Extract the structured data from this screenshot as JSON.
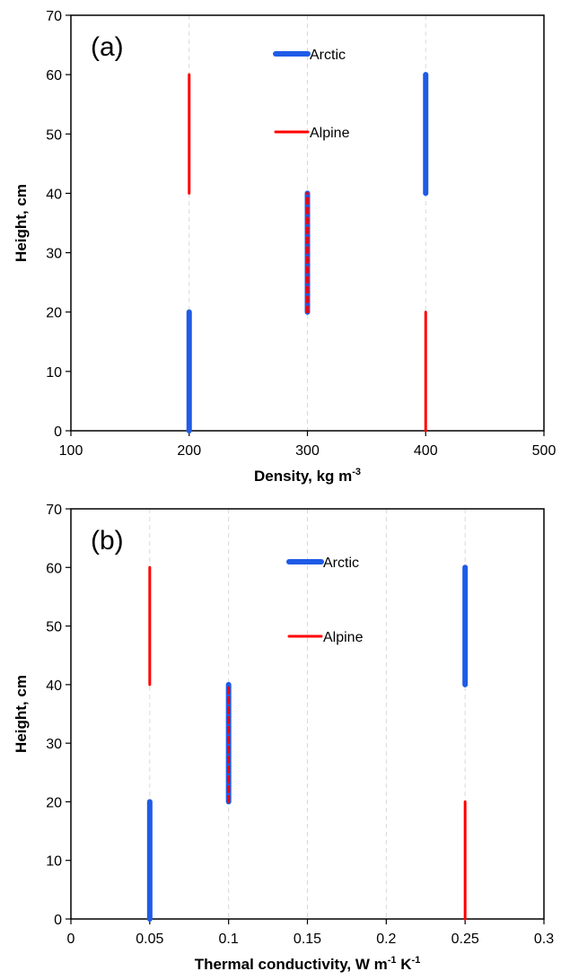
{
  "chart_data": [
    {
      "type": "line",
      "panel_label": "(a)",
      "xlabel": "Density, kg m",
      "xlabel_sup": "-3",
      "ylabel": "Height, cm",
      "xlim": [
        100,
        500
      ],
      "ylim": [
        0,
        70
      ],
      "xticks": [
        100,
        200,
        300,
        400,
        500
      ],
      "xtick_labels": [
        "100",
        "200",
        "300",
        "400",
        "500"
      ],
      "yticks": [
        0,
        10,
        20,
        30,
        40,
        50,
        60,
        70
      ],
      "ytick_labels": [
        "0",
        "10",
        "20",
        "30",
        "40",
        "50",
        "60",
        "70"
      ],
      "grid": "vertical dashed",
      "legend_position": "top-center",
      "series": [
        {
          "name": "Arctic",
          "color": "#1f5be6",
          "style": "thick solid",
          "segments": [
            [
              [
                200,
                0
              ],
              [
                200,
                20
              ]
            ],
            [
              [
                300,
                20
              ],
              [
                300,
                40
              ]
            ],
            [
              [
                400,
                40
              ],
              [
                400,
                60
              ]
            ]
          ]
        },
        {
          "name": "Alpine",
          "color": "#ff0000",
          "style": "thin solid",
          "segments": [
            [
              [
                400,
                0
              ],
              [
                400,
                20
              ]
            ],
            [
              [
                300,
                20
              ],
              [
                300,
                40
              ]
            ],
            [
              [
                200,
                40
              ],
              [
                200,
                60
              ]
            ]
          ]
        }
      ]
    },
    {
      "type": "line",
      "panel_label": "(b)",
      "xlabel": "Thermal conductivity, W m",
      "xlabel_sup": "-1",
      "xlabel_mid": " K",
      "xlabel_sup2": "-1",
      "ylabel": "Height, cm",
      "xlim": [
        0,
        0.3
      ],
      "ylim": [
        0,
        70
      ],
      "xticks": [
        0,
        0.05,
        0.1,
        0.15,
        0.2,
        0.25,
        0.3
      ],
      "xtick_labels": [
        "0",
        "0.05",
        "0.1",
        "0.15",
        "0.2",
        "0.25",
        "0.3"
      ],
      "yticks": [
        0,
        10,
        20,
        30,
        40,
        50,
        60,
        70
      ],
      "ytick_labels": [
        "0",
        "10",
        "20",
        "30",
        "40",
        "50",
        "60",
        "70"
      ],
      "grid": "vertical dashed",
      "legend_position": "top-center",
      "series": [
        {
          "name": "Arctic",
          "color": "#1f5be6",
          "style": "thick solid",
          "segments": [
            [
              [
                0.05,
                0
              ],
              [
                0.05,
                20
              ]
            ],
            [
              [
                0.1,
                20
              ],
              [
                0.1,
                40
              ]
            ],
            [
              [
                0.25,
                40
              ],
              [
                0.25,
                60
              ]
            ]
          ]
        },
        {
          "name": "Alpine",
          "color": "#ff0000",
          "style": "thin solid",
          "segments": [
            [
              [
                0.25,
                0
              ],
              [
                0.25,
                20
              ]
            ],
            [
              [
                0.1,
                20
              ],
              [
                0.1,
                40
              ]
            ],
            [
              [
                0.05,
                40
              ],
              [
                0.05,
                60
              ]
            ]
          ]
        }
      ]
    }
  ]
}
